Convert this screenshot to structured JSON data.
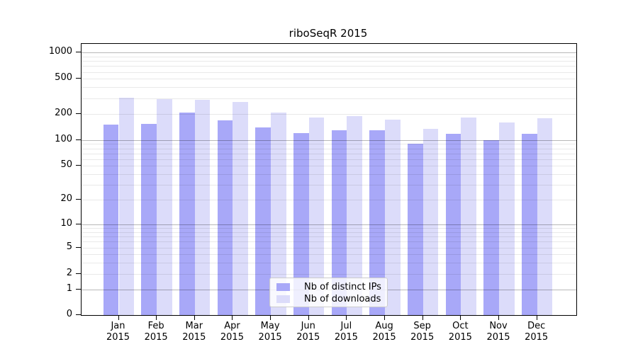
{
  "chart_data": {
    "type": "bar",
    "title": "riboSeqR 2015",
    "x_months": [
      "Jan",
      "Feb",
      "Mar",
      "Apr",
      "May",
      "Jun",
      "Jul",
      "Aug",
      "Sep",
      "Oct",
      "Nov",
      "Dec"
    ],
    "x_year": "2015",
    "series": [
      {
        "name": "Nb of distinct IPs",
        "color": "#a8a8f8",
        "values": [
          150,
          152,
          207,
          168,
          140,
          120,
          130,
          129,
          90,
          117,
          100,
          118
        ]
      },
      {
        "name": "Nb of downloads",
        "color": "#dcdcfa",
        "values": [
          304,
          295,
          289,
          274,
          208,
          181,
          187,
          170,
          135,
          181,
          158,
          176
        ]
      }
    ],
    "y_ticks": [
      0,
      1,
      2,
      5,
      10,
      20,
      50,
      100,
      200,
      500,
      1000
    ],
    "y_scale": "log10(value+1)",
    "ylim": [
      0,
      1250
    ],
    "grid": "on",
    "legend_position": "bottom-center"
  },
  "colors": {
    "bar_distinct_ips": "#a8a8f8",
    "bar_downloads": "#dcdcfa",
    "grid_major": "#b8b8b8",
    "grid_minor": "#e8e8e8",
    "axis": "#000000",
    "background": "#ffffff",
    "legend_border": "#cccccc"
  }
}
